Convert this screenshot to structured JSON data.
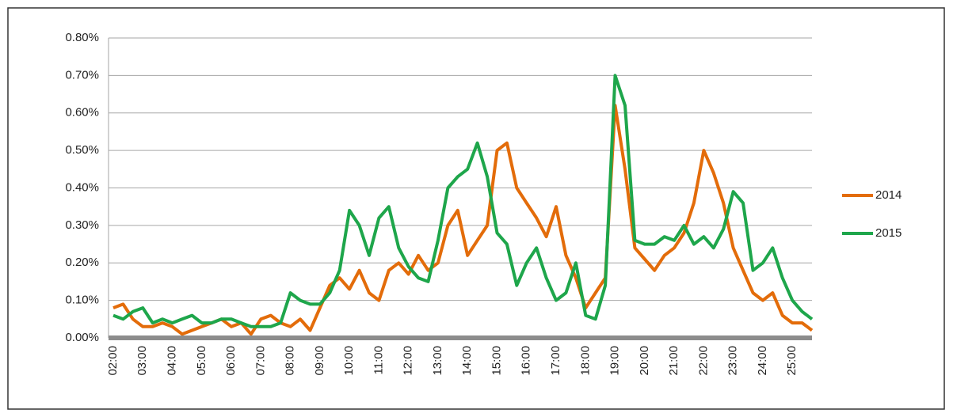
{
  "chart_data": {
    "type": "line",
    "categories": [
      "02:00",
      null,
      null,
      "03:00",
      null,
      null,
      "04:00",
      null,
      null,
      "05:00",
      null,
      null,
      "06:00",
      null,
      null,
      "07:00",
      null,
      null,
      "08:00",
      null,
      null,
      "09:00",
      null,
      null,
      "10:00",
      null,
      null,
      "11:00",
      null,
      null,
      "12:00",
      null,
      null,
      "13:00",
      null,
      null,
      "14:00",
      null,
      null,
      "15:00",
      null,
      null,
      "16:00",
      null,
      null,
      "17:00",
      null,
      null,
      "18:00",
      null,
      null,
      "19:00",
      null,
      null,
      "20:00",
      null,
      null,
      "21:00",
      null,
      null,
      "22:00",
      null,
      null,
      "23:00",
      null,
      null,
      "24:00",
      null,
      null,
      "25:00",
      null,
      null
    ],
    "series": [
      {
        "name": "2014",
        "color": "#e36c0a",
        "values": [
          0.08,
          0.09,
          0.05,
          0.03,
          0.03,
          0.04,
          0.03,
          0.01,
          0.02,
          0.03,
          0.04,
          0.05,
          0.03,
          0.04,
          0.01,
          0.05,
          0.06,
          0.04,
          0.03,
          0.05,
          0.02,
          0.08,
          0.14,
          0.16,
          0.13,
          0.18,
          0.12,
          0.1,
          0.18,
          0.2,
          0.17,
          0.22,
          0.18,
          0.2,
          0.3,
          0.34,
          0.22,
          0.26,
          0.3,
          0.5,
          0.52,
          0.4,
          0.36,
          0.32,
          0.27,
          0.35,
          0.22,
          0.16,
          0.08,
          0.12,
          0.16,
          0.62,
          0.45,
          0.24,
          0.21,
          0.18,
          0.22,
          0.24,
          0.28,
          0.36,
          0.5,
          0.44,
          0.36,
          0.24,
          0.18,
          0.12,
          0.1,
          0.12,
          0.06,
          0.04,
          0.04,
          0.02
        ]
      },
      {
        "name": "2015",
        "color": "#1ea64b",
        "values": [
          0.06,
          0.05,
          0.07,
          0.08,
          0.04,
          0.05,
          0.04,
          0.05,
          0.06,
          0.04,
          0.04,
          0.05,
          0.05,
          0.04,
          0.03,
          0.03,
          0.03,
          0.04,
          0.12,
          0.1,
          0.09,
          0.09,
          0.12,
          0.18,
          0.34,
          0.3,
          0.22,
          0.32,
          0.35,
          0.24,
          0.19,
          0.16,
          0.15,
          0.26,
          0.4,
          0.43,
          0.45,
          0.52,
          0.43,
          0.28,
          0.25,
          0.14,
          0.2,
          0.24,
          0.16,
          0.1,
          0.12,
          0.2,
          0.06,
          0.05,
          0.14,
          0.7,
          0.62,
          0.26,
          0.25,
          0.25,
          0.27,
          0.26,
          0.3,
          0.25,
          0.27,
          0.24,
          0.29,
          0.39,
          0.36,
          0.18,
          0.2,
          0.24,
          0.16,
          0.1,
          0.07,
          0.05
        ]
      }
    ],
    "ylim": [
      0,
      0.8
    ],
    "yticks": [
      {
        "value": 0,
        "label": "0.00%"
      },
      {
        "value": 0.1,
        "label": "0.10%"
      },
      {
        "value": 0.2,
        "label": "0.20%"
      },
      {
        "value": 0.3,
        "label": "0.30%"
      },
      {
        "value": 0.4,
        "label": "0.40%"
      },
      {
        "value": 0.5,
        "label": "0.50%"
      },
      {
        "value": 0.6,
        "label": "0.60%"
      },
      {
        "value": 0.7,
        "label": "0.70%"
      },
      {
        "value": 0.8,
        "label": "0.80%"
      }
    ],
    "grid": true,
    "legend": "right"
  }
}
